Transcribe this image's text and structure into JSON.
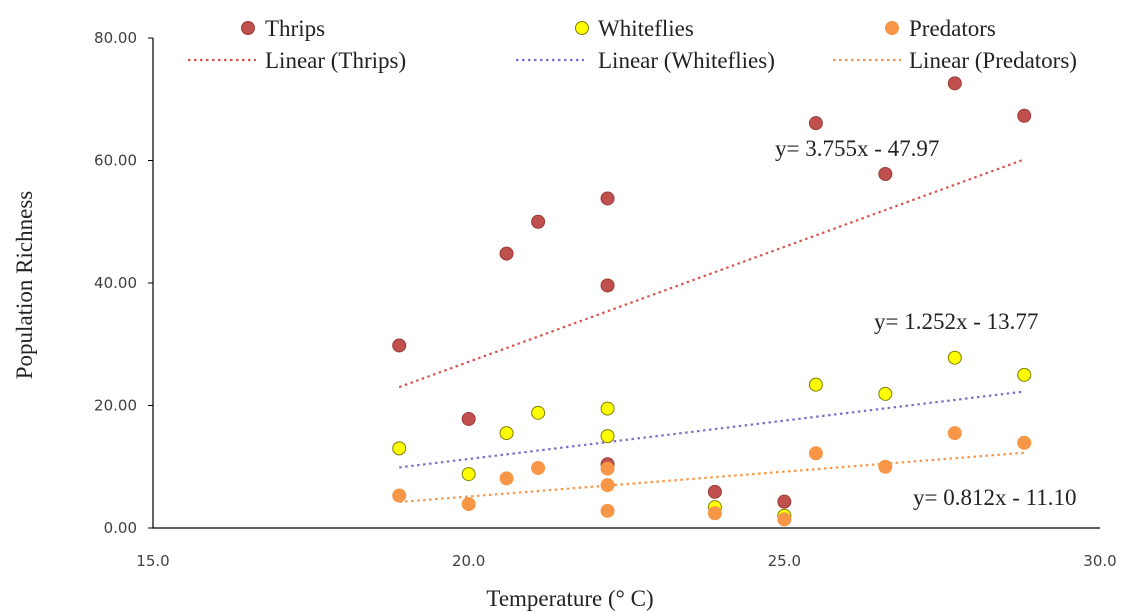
{
  "chart_data": {
    "type": "scatter",
    "xlabel": "Temperature (° C)",
    "ylabel": "Population Richness",
    "xlim": [
      15,
      30
    ],
    "ylim": [
      0,
      80
    ],
    "xticks": [
      "15.0",
      "20.0",
      "25.0",
      "30.0"
    ],
    "yticks": [
      "0.00",
      "20.00",
      "40.00",
      "60.00",
      "80.00"
    ],
    "grid": false,
    "legend_position": "top",
    "series": [
      {
        "name": "Thrips",
        "color": "#c0504d",
        "stroke": "#9b3b38",
        "points": [
          [
            18.9,
            29.8
          ],
          [
            20.0,
            17.8
          ],
          [
            20.6,
            44.8
          ],
          [
            21.1,
            50.0
          ],
          [
            22.2,
            53.8
          ],
          [
            22.2,
            39.6
          ],
          [
            22.2,
            10.4
          ],
          [
            23.9,
            5.9
          ],
          [
            25.0,
            4.3
          ],
          [
            25.5,
            66.1
          ],
          [
            26.6,
            57.8
          ],
          [
            27.7,
            72.6
          ],
          [
            28.8,
            67.3
          ]
        ],
        "trendline": {
          "name": "Linear (Thrips)",
          "color": "#d9534f",
          "slope": 3.755,
          "intercept": -47.97,
          "equation": "y= 3.755x - 47.97"
        }
      },
      {
        "name": "Whiteflies",
        "color": "#ffff00",
        "stroke": "#7f7f00",
        "points": [
          [
            18.9,
            13.0
          ],
          [
            20.0,
            8.8
          ],
          [
            20.6,
            15.5
          ],
          [
            21.1,
            18.8
          ],
          [
            22.2,
            19.5
          ],
          [
            22.2,
            15.0
          ],
          [
            23.9,
            3.4
          ],
          [
            25.0,
            2.0
          ],
          [
            25.5,
            23.4
          ],
          [
            26.6,
            21.9
          ],
          [
            27.7,
            27.8
          ],
          [
            28.8,
            25.0
          ]
        ],
        "trendline": {
          "name": "Linear (Whiteflies)",
          "color": "#7f6fc8",
          "slope": 1.252,
          "intercept": -13.77,
          "equation": "y= 1.252x - 13.77"
        }
      },
      {
        "name": "Predators",
        "color": "#f79646",
        "stroke": "#f79646",
        "points": [
          [
            18.9,
            5.3
          ],
          [
            20.0,
            3.9
          ],
          [
            20.6,
            8.1
          ],
          [
            21.1,
            9.8
          ],
          [
            22.2,
            9.7
          ],
          [
            22.2,
            7.0
          ],
          [
            22.2,
            2.8
          ],
          [
            23.9,
            2.4
          ],
          [
            25.0,
            1.4
          ],
          [
            25.5,
            12.2
          ],
          [
            26.6,
            10.0
          ],
          [
            27.7,
            15.5
          ],
          [
            28.8,
            13.9
          ]
        ],
        "trendline": {
          "name": "Linear (Predators)",
          "color": "#f79646",
          "slope": 0.812,
          "intercept": -11.1,
          "equation": "y= 0.812x - 11.10"
        }
      }
    ]
  }
}
